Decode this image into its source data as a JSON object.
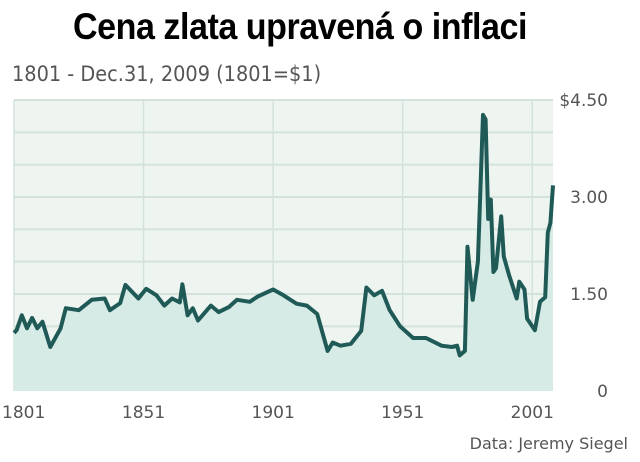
{
  "chart_data": {
    "type": "area",
    "title": "Cena zlata upravená o inflaci",
    "subtitle": "1801 - Dec.31, 2009 (1801=$1)",
    "source": "Data: Jeremy Siegel",
    "xlabel": "",
    "ylabel": "",
    "xlim": [
      1801,
      2009
    ],
    "ylim": [
      0,
      4.5
    ],
    "x_ticks": [
      1801,
      1851,
      1901,
      1951,
      2001
    ],
    "x_tick_labels": [
      "1801",
      "1851",
      "1901",
      "1951",
      "2001"
    ],
    "y_ticks": [
      0,
      1.5,
      3.0,
      4.5
    ],
    "y_tick_labels": [
      "0",
      "1.50",
      "3.00",
      "$4.50"
    ],
    "y_gridlines": [
      0.5,
      1,
      1.5,
      2,
      2.5,
      3,
      3.5,
      4,
      4.5
    ],
    "grid": true,
    "colors": {
      "line": "#1f5a57",
      "fill": "#d6ebe6",
      "plot_bg": "#eef5f1",
      "grid": "#d4e2dc"
    },
    "x": [
      1801,
      1802,
      1804,
      1806,
      1808,
      1810,
      1812,
      1815,
      1819,
      1821,
      1826,
      1831,
      1836,
      1838,
      1842,
      1844,
      1849,
      1852,
      1856,
      1859,
      1862,
      1865,
      1866,
      1868,
      1870,
      1872,
      1877,
      1880,
      1884,
      1887,
      1892,
      1895,
      1901,
      1905,
      1910,
      1914,
      1918,
      1922,
      1924,
      1927,
      1931,
      1935,
      1937,
      1940,
      1943,
      1946,
      1950,
      1955,
      1960,
      1966,
      1970,
      1972,
      1973,
      1975,
      1976,
      1978,
      1980,
      1982,
      1983,
      1984,
      1985,
      1986,
      1987,
      1989,
      1990,
      1992,
      1995,
      1996,
      1998,
      1999,
      2002,
      2004,
      2006,
      2007,
      2008,
      2009
    ],
    "values": [
      0.9,
      0.94,
      1.17,
      0.97,
      1.13,
      0.97,
      1.07,
      0.68,
      0.97,
      1.28,
      1.25,
      1.41,
      1.43,
      1.25,
      1.36,
      1.64,
      1.43,
      1.58,
      1.48,
      1.32,
      1.43,
      1.37,
      1.65,
      1.17,
      1.28,
      1.09,
      1.32,
      1.22,
      1.3,
      1.41,
      1.38,
      1.46,
      1.57,
      1.48,
      1.35,
      1.32,
      1.19,
      0.62,
      0.75,
      0.7,
      0.73,
      0.93,
      1.6,
      1.48,
      1.55,
      1.25,
      1.0,
      0.82,
      0.82,
      0.7,
      0.68,
      0.7,
      0.55,
      0.62,
      2.23,
      1.41,
      2.0,
      4.27,
      4.2,
      2.66,
      2.96,
      1.84,
      1.9,
      2.7,
      2.08,
      1.8,
      1.43,
      1.69,
      1.57,
      1.12,
      0.94,
      1.38,
      1.45,
      2.45,
      2.6,
      3.18
    ]
  }
}
